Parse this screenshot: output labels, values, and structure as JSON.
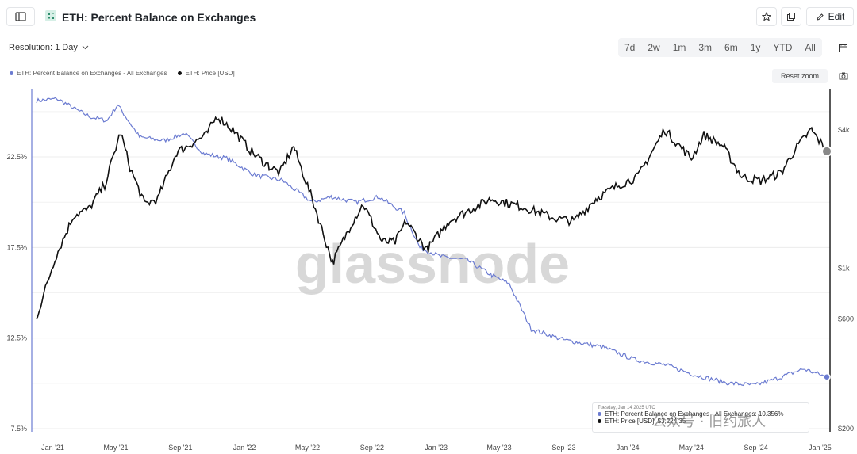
{
  "header": {
    "title": "ETH: Percent Balance on Exchanges",
    "edit_label": "Edit",
    "resolution": "Resolution: 1 Day"
  },
  "ranges": [
    "7d",
    "2w",
    "1m",
    "3m",
    "6m",
    "1y",
    "YTD",
    "All"
  ],
  "reset_zoom": "Reset zoom",
  "watermark": "glassnode",
  "tooltip": {
    "date": "Tuesday, Jan 14 2025 UTC",
    "line1": "ETH: Percent Balance on Exchanges - All Exchanges: 10.356%",
    "line2": "ETH: Price [USD]: $3,224.35"
  },
  "overlay_text": "公众号 · 旧约旅人",
  "icons": [
    "sidebar-toggle-icon",
    "app-logo-icon",
    "star-icon",
    "copy-icon",
    "edit-icon",
    "calendar-icon",
    "camera-icon",
    "chevron-down-icon"
  ],
  "colors": {
    "balance": "#6b7bd1",
    "price": "#111111",
    "accent": "#6b7bd1"
  },
  "chart_data": {
    "type": "line",
    "legend": [
      {
        "name": "ETH: Percent Balance on Exchanges - All Exchanges",
        "color": "#6b7bd1"
      },
      {
        "name": "ETH: Price [USD]",
        "color": "#111111"
      }
    ],
    "x_ticks": [
      "Jan '21",
      "May '21",
      "Sep '21",
      "Jan '22",
      "May '22",
      "Sep '22",
      "Jan '23",
      "May '23",
      "Sep '23",
      "Jan '24",
      "May '24",
      "Sep '24",
      "Jan '25"
    ],
    "y_left_ticks": [
      "22.5%",
      "17.5%",
      "12.5%",
      "7.5%"
    ],
    "y_right_ticks": [
      "$4k",
      "$1k",
      "$600",
      "$200"
    ],
    "y_left_lim": [
      7.5,
      26
    ],
    "y_right_scale": "log",
    "series": [
      {
        "name": "ETH: Percent Balance on Exchanges - All Exchanges",
        "axis": "left",
        "x": [
          "2020-12-01",
          "2021-01-10",
          "2021-02-15",
          "2021-03-15",
          "2021-04-15",
          "2021-05-05",
          "2021-06-15",
          "2021-08-01",
          "2021-09-10",
          "2021-10-15",
          "2021-12-01",
          "2022-01-20",
          "2022-03-15",
          "2022-05-10",
          "2022-06-15",
          "2022-08-01",
          "2022-09-15",
          "2022-11-01",
          "2022-12-01",
          "2023-01-10",
          "2023-03-01",
          "2023-04-15",
          "2023-05-20",
          "2023-07-01",
          "2023-09-01",
          "2023-11-15",
          "2024-01-15",
          "2024-03-15",
          "2024-05-15",
          "2024-07-15",
          "2024-09-01",
          "2024-10-15",
          "2024-12-01",
          "2025-01-14"
        ],
        "values": [
          25.6,
          25.7,
          25.1,
          24.7,
          24.5,
          25.4,
          23.6,
          23.4,
          23.8,
          22.7,
          22.4,
          21.5,
          21.2,
          20.0,
          20.3,
          20.0,
          20.3,
          19.4,
          17.5,
          17.0,
          16.8,
          16.0,
          15.5,
          13.0,
          12.4,
          12.0,
          11.3,
          11.0,
          10.4,
          10.0,
          9.9,
          10.3,
          10.8,
          10.356
        ]
      },
      {
        "name": "ETH: Price [USD]",
        "axis": "right",
        "x": [
          "2020-12-01",
          "2021-01-05",
          "2021-02-10",
          "2021-03-10",
          "2021-04-10",
          "2021-05-10",
          "2021-06-01",
          "2021-06-25",
          "2021-07-20",
          "2021-08-25",
          "2021-09-15",
          "2021-10-20",
          "2021-11-10",
          "2021-12-10",
          "2022-01-15",
          "2022-02-15",
          "2022-03-10",
          "2022-04-05",
          "2022-05-10",
          "2022-06-18",
          "2022-07-20",
          "2022-08-15",
          "2022-09-20",
          "2022-10-15",
          "2022-11-05",
          "2022-12-15",
          "2023-01-25",
          "2023-04-15",
          "2023-06-15",
          "2023-08-15",
          "2023-09-20",
          "2023-11-01",
          "2023-12-15",
          "2024-01-20",
          "2024-03-12",
          "2024-05-01",
          "2024-05-25",
          "2024-07-01",
          "2024-08-05",
          "2024-09-10",
          "2024-10-20",
          "2024-11-15",
          "2024-12-16",
          "2025-01-14"
        ],
        "values": [
          600,
          1100,
          1700,
          1800,
          2300,
          3900,
          2600,
          1900,
          2000,
          3200,
          3400,
          3800,
          4600,
          4000,
          3200,
          2800,
          2600,
          3400,
          2000,
          1050,
          1500,
          1900,
          1300,
          1300,
          1600,
          1200,
          1600,
          2000,
          1850,
          1650,
          1600,
          2000,
          2300,
          2500,
          4000,
          3000,
          3800,
          3400,
          2500,
          2400,
          2600,
          3300,
          4000,
          3224.35
        ]
      }
    ]
  }
}
